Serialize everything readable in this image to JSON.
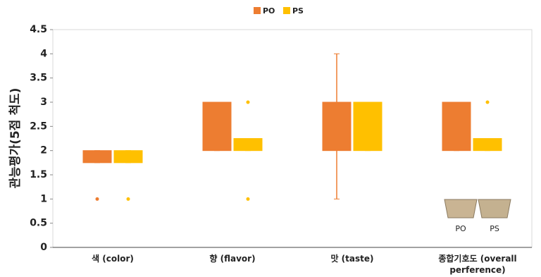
{
  "chart_data": {
    "type": "box",
    "y_label": "관능평가(5점 척도)",
    "categories": [
      "색  (color)",
      "향  (flavor)",
      "맛  (taste)",
      "종합기호도 (overall perference)"
    ],
    "ylim": [
      0,
      4.5
    ],
    "yticks": [
      0,
      0.5,
      1,
      1.5,
      2,
      2.5,
      3,
      3.5,
      4,
      4.5
    ],
    "grid": false,
    "legend": "top",
    "series": [
      {
        "name": "PO",
        "color": "#ed7d31",
        "boxes": [
          {
            "q1": 1.75,
            "q3": 2,
            "min": 1.75,
            "max": 2,
            "outliers": [
              1
            ]
          },
          {
            "q1": 2,
            "q3": 3,
            "min": 2,
            "max": 3,
            "outliers": []
          },
          {
            "q1": 2,
            "q3": 3,
            "min": 1,
            "max": 4,
            "outliers": []
          },
          {
            "q1": 2,
            "q3": 3,
            "min": 2,
            "max": 3,
            "outliers": []
          }
        ]
      },
      {
        "name": "PS",
        "color": "#ffc000",
        "boxes": [
          {
            "q1": 1.75,
            "q3": 2,
            "min": 1.75,
            "max": 2,
            "outliers": [
              1
            ]
          },
          {
            "q1": 2,
            "q3": 2.25,
            "min": 2,
            "max": 2.25,
            "outliers": [
              1,
              3
            ]
          },
          {
            "q1": 2,
            "q3": 3,
            "min": 2,
            "max": 3,
            "outliers": []
          },
          {
            "q1": 2,
            "q3": 2.25,
            "min": 2,
            "max": 2.25,
            "outliers": [
              3
            ]
          }
        ]
      }
    ],
    "annotations": [
      "PO",
      "PS"
    ]
  }
}
